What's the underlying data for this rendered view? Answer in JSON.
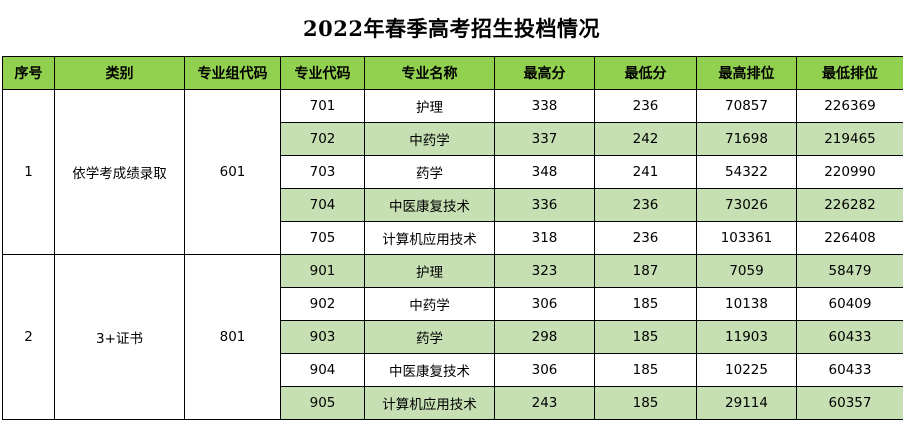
{
  "title": "2022年春季高考招生投档情况",
  "headers": [
    "序号",
    "类别",
    "专业组代码",
    "专业代码",
    "专业名称",
    "最高分",
    "最低分",
    "最高排位",
    "最低排位"
  ],
  "groups": [
    {
      "index": "1",
      "category": "依学考成绩录取",
      "group_code": "601",
      "rows": [
        {
          "code": "701",
          "name": "护理",
          "max_score": "338",
          "min_score": "236",
          "max_rank": "70857",
          "min_rank": "226369"
        },
        {
          "code": "702",
          "name": "中药学",
          "max_score": "337",
          "min_score": "242",
          "max_rank": "71698",
          "min_rank": "219465"
        },
        {
          "code": "703",
          "name": "药学",
          "max_score": "348",
          "min_score": "241",
          "max_rank": "54322",
          "min_rank": "220990"
        },
        {
          "code": "704",
          "name": "中医康复技术",
          "max_score": "336",
          "min_score": "236",
          "max_rank": "73026",
          "min_rank": "226282"
        },
        {
          "code": "705",
          "name": "计算机应用技术",
          "max_score": "318",
          "min_score": "236",
          "max_rank": "103361",
          "min_rank": "226408"
        }
      ]
    },
    {
      "index": "2",
      "category": "3+证书",
      "group_code": "801",
      "rows": [
        {
          "code": "901",
          "name": "护理",
          "max_score": "323",
          "min_score": "187",
          "max_rank": "7059",
          "min_rank": "58479"
        },
        {
          "code": "902",
          "name": "中药学",
          "max_score": "306",
          "min_score": "185",
          "max_rank": "10138",
          "min_rank": "60409"
        },
        {
          "code": "903",
          "name": "药学",
          "max_score": "298",
          "min_score": "185",
          "max_rank": "11903",
          "min_rank": "60433"
        },
        {
          "code": "904",
          "name": "中医康复技术",
          "max_score": "306",
          "min_score": "185",
          "max_rank": "10225",
          "min_rank": "60433"
        },
        {
          "code": "905",
          "name": "计算机应用技术",
          "max_score": "243",
          "min_score": "185",
          "max_rank": "29114",
          "min_rank": "60357"
        }
      ]
    }
  ],
  "colors": {
    "header_bg": "#92d050",
    "alt_row_bg": "#c6e0b4"
  }
}
